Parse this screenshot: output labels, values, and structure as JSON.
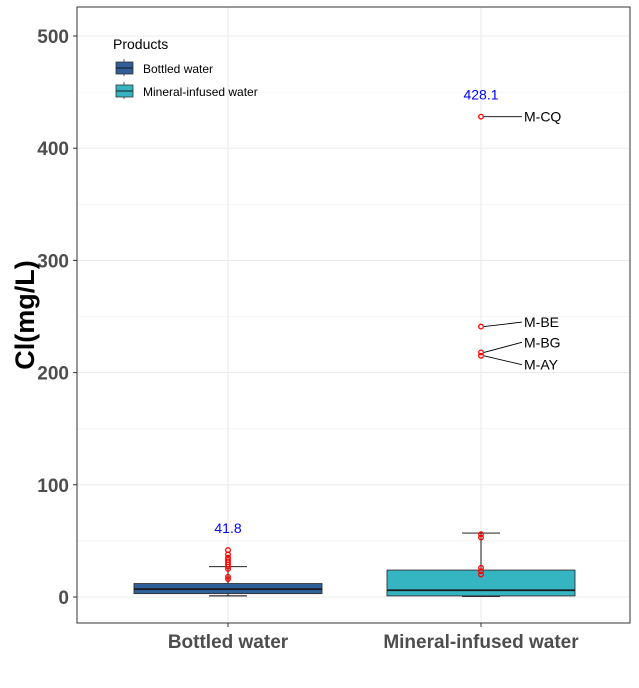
{
  "chart_data": {
    "type": "box",
    "ylabel": "Cl(mg/L)",
    "xlabel": "",
    "ylim": [
      -25,
      525
    ],
    "yticks": [
      0,
      100,
      200,
      300,
      400,
      500
    ],
    "grid": true,
    "legend": {
      "title": "Products",
      "placement": "top-left",
      "entries": [
        {
          "name": "Bottled water",
          "color": "#2f5e98"
        },
        {
          "name": "Mineral-infused water",
          "color": "#35b4c2"
        }
      ]
    },
    "categories": [
      "Bottled water",
      "Mineral-infused water"
    ],
    "boxes": [
      {
        "category": "Bottled water",
        "color": "#2f5e98",
        "whisker_low": 1,
        "q1": 3,
        "median": 7,
        "q3": 12,
        "whisker_high": 27,
        "outliers": [
          16,
          18,
          25,
          27,
          29,
          31,
          33,
          35,
          38,
          41.8
        ],
        "max_label": "41.8"
      },
      {
        "category": "Mineral-infused water",
        "color": "#35b4c2",
        "whisker_low": 0.5,
        "q1": 1,
        "median": 6,
        "q3": 24,
        "whisker_high": 57,
        "outliers": [
          20,
          23,
          26,
          53,
          56,
          215,
          218,
          241,
          428.1
        ],
        "max_label": "428.1"
      }
    ],
    "annotations": [
      {
        "text": "M-CQ",
        "category": "Mineral-infused water",
        "y": 428.1,
        "label_y": 428.1
      },
      {
        "text": "M-BE",
        "category": "Mineral-infused water",
        "y": 241,
        "label_y": 245
      },
      {
        "text": "M-BG",
        "category": "Mineral-infused water",
        "y": 218,
        "label_y": 227
      },
      {
        "text": "M-AY",
        "category": "Mineral-infused water",
        "y": 215,
        "label_y": 207
      }
    ],
    "colors": {
      "max_label": "#0000ff",
      "outlier": "#ff0000",
      "grid": "#ebebeb"
    }
  }
}
